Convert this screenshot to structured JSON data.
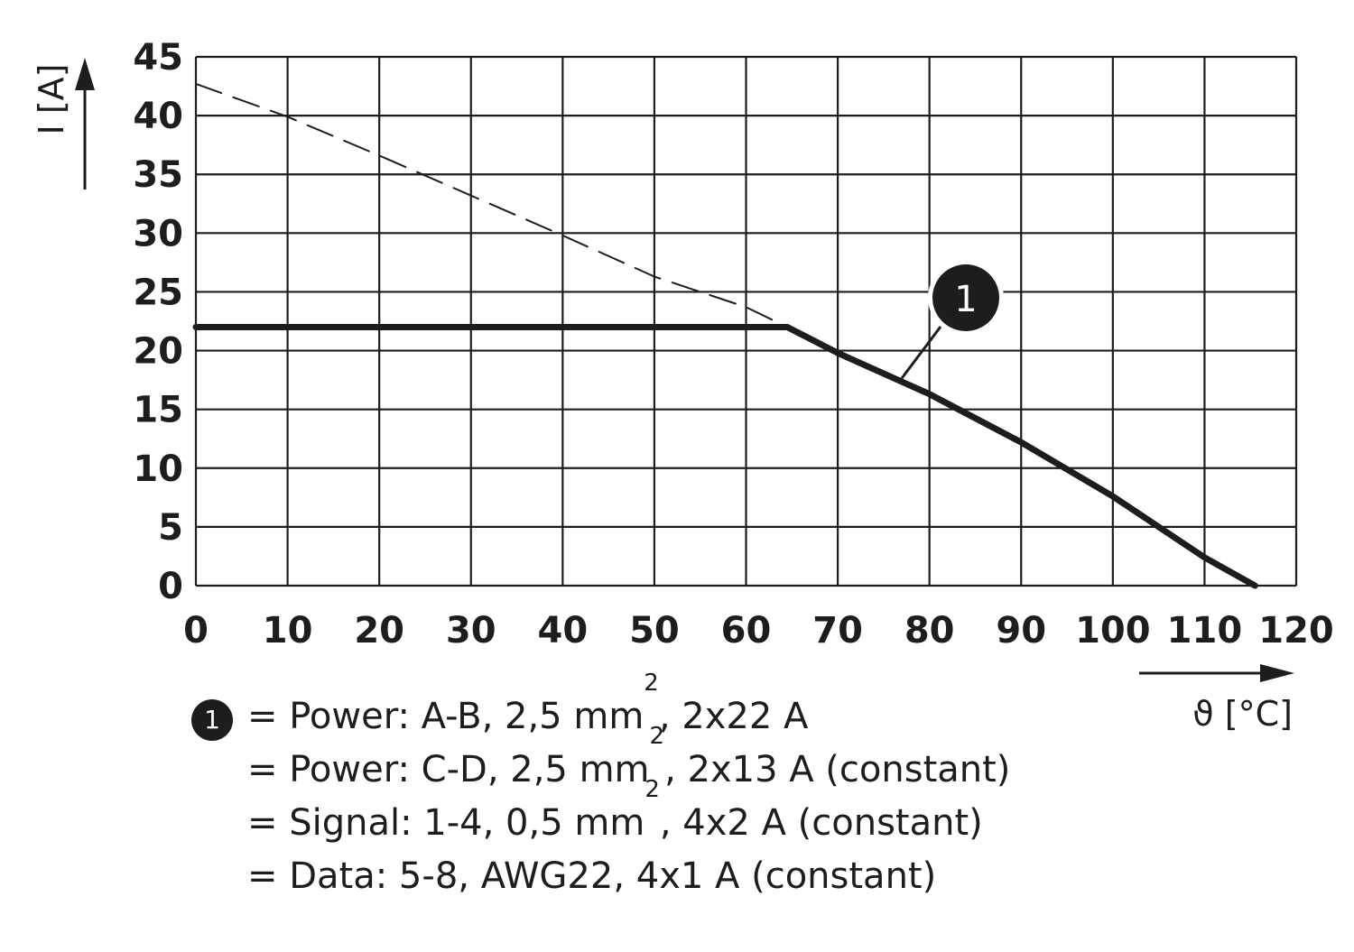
{
  "chart_data": {
    "type": "line",
    "xlabel": "ϑ [°C]",
    "ylabel": "I [A]",
    "xlim": [
      0,
      120
    ],
    "ylim": [
      0,
      45
    ],
    "x_ticks": [
      "0",
      "10",
      "20",
      "30",
      "40",
      "50",
      "60",
      "70",
      "80",
      "90",
      "100",
      "110",
      "120"
    ],
    "y_ticks": [
      "0",
      "5",
      "10",
      "15",
      "20",
      "25",
      "30",
      "35",
      "40",
      "45"
    ],
    "grid": true,
    "series": [
      {
        "marker": "1",
        "style": "solid",
        "x": [
          0,
          64.5,
          70,
          80,
          90,
          100,
          110,
          115.5
        ],
        "y": [
          22,
          22,
          19.8,
          16.3,
          12.2,
          7.6,
          2.4,
          0
        ]
      },
      {
        "style": "dashed",
        "x": [
          0,
          10,
          20,
          30,
          40,
          50,
          60,
          64.5
        ],
        "y": [
          42.7,
          39.9,
          36.6,
          33.2,
          29.8,
          26.3,
          23.7,
          22
        ]
      }
    ],
    "annotation": {
      "label": "1",
      "points_to": [
        76,
        17.5
      ]
    }
  },
  "legend": {
    "marker": "1",
    "rows": [
      {
        "a": "= Power: A-B, 2,5 mm",
        "sup": "2",
        "b": ", 2x22 A"
      },
      {
        "a": "= Power: C-D, 2,5 mm",
        "sup": "2",
        "b": ", 2x13 A (constant)"
      },
      {
        "a": "= Signal: 1-4, 0,5 mm",
        "sup": "2",
        "b": ", 4x2 A (constant)"
      },
      {
        "a": "= Data: 5-8, AWG22, 4x1 A (constant)",
        "sup": "",
        "b": ""
      }
    ]
  },
  "colors": {
    "ink": "#1d1d1b",
    "background": "#ffffff"
  }
}
